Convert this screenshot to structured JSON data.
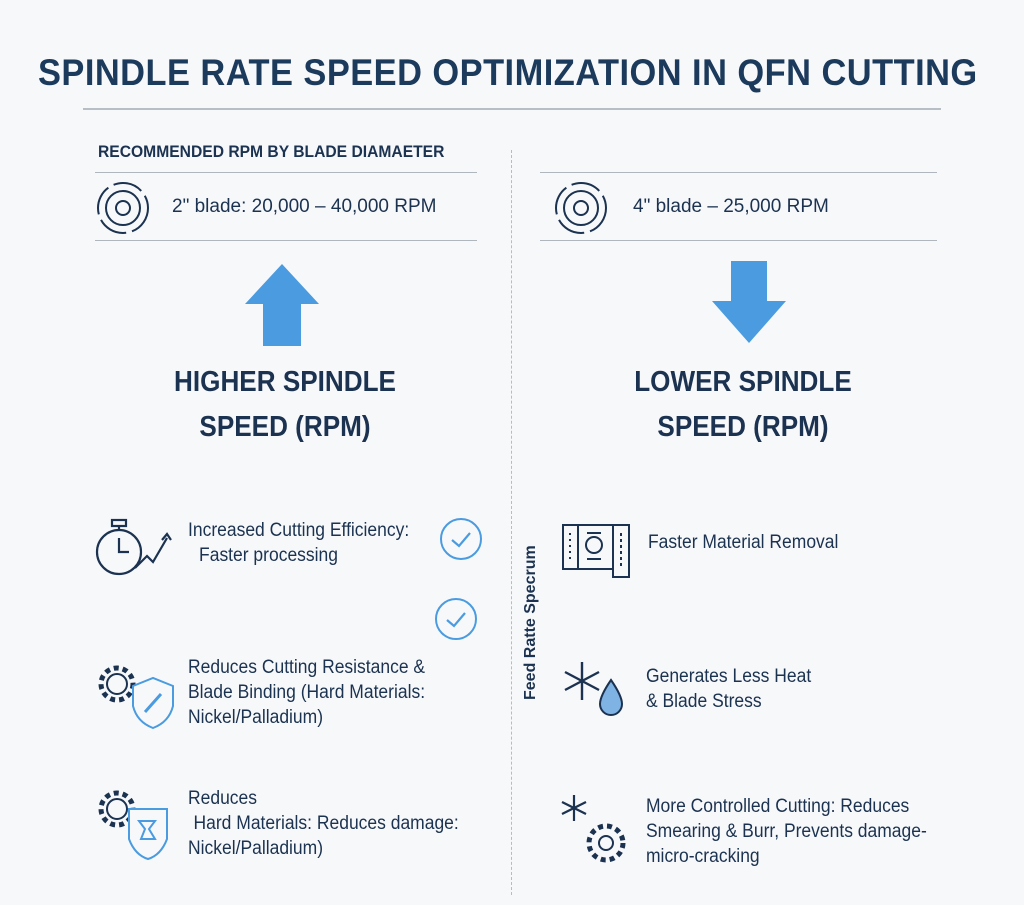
{
  "title": "SPINDLE RATE SPEED OPTIMIZATION IN QFN CUTTING",
  "subtitle": "RECOMMENDED RPM BY BLADE DIAMAETER",
  "left": {
    "blade": "2\" blade: 20,000 – 40,000 RPM",
    "heading_line1": "HIGHER SPINDLE",
    "heading_line2": "SPEED (RPM)",
    "items": [
      {
        "lines": [
          "Increased Cutting Efficiency:",
          "Faster processing"
        ]
      },
      {
        "lines": [
          "Reduces Cutting Resistance &",
          "Blade Binding (Hard Materials:",
          "Nickel/Palladium)"
        ]
      },
      {
        "lines": [
          "Reduces",
          "Hard Materials: Reduces damage:",
          "Nickel/Palladium)"
        ]
      }
    ]
  },
  "right": {
    "blade": "4\" blade – 25,000 RPM",
    "heading_line1": "LOWER SPINDLE",
    "heading_line2": "SPEED (RPM)",
    "vertical_label": "Feed Ratte Specrum",
    "items": [
      {
        "lines": [
          "Faster Material Removal"
        ]
      },
      {
        "lines": [
          "Generates Less Heat",
          "& Blade Stress"
        ]
      },
      {
        "lines": [
          "More Controlled Cutting: Reduces",
          "Smearing & Burr, Prevents damage-",
          "micro-cracking"
        ]
      }
    ]
  },
  "colors": {
    "navy": "#1b3250",
    "accent": "#4a9be0"
  }
}
